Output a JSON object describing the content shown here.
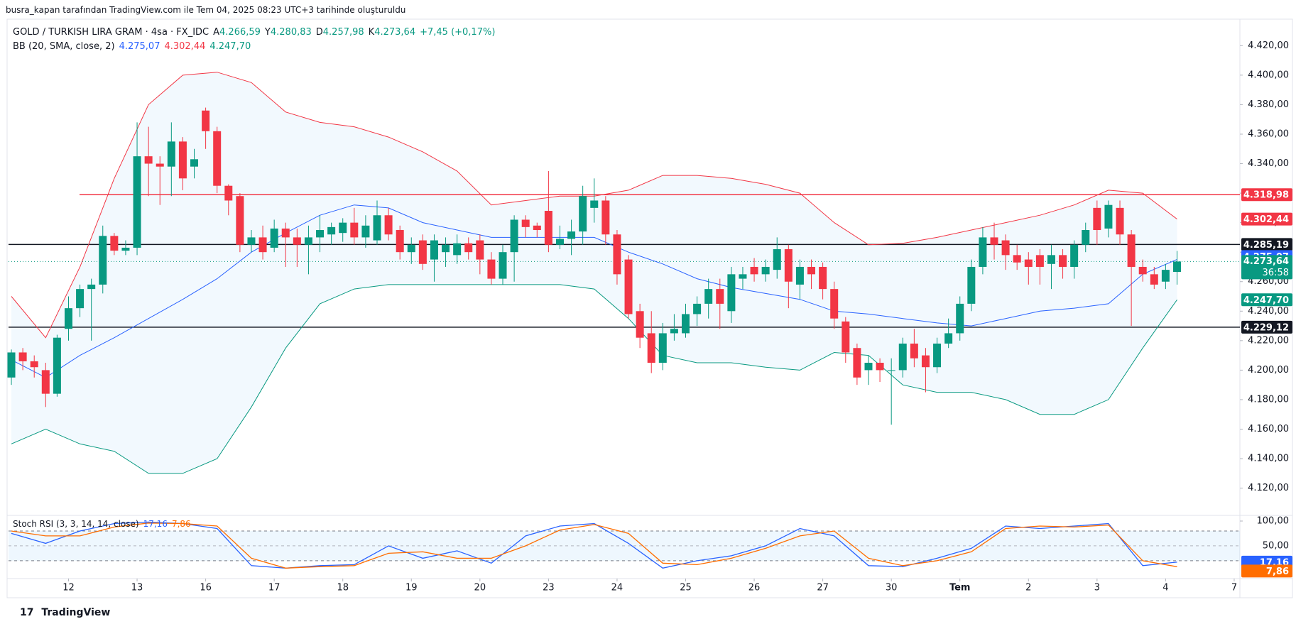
{
  "header": {
    "credit": "busra_kapan tarafından TradingView.com ile Tem 04, 2025 08:23 UTC+3 tarihinde oluşturuldu",
    "symbol": "GOLD / TURKISH LIRA GRAM · 4sa · FX_IDC",
    "ohlc": [
      {
        "key": "A",
        "value": "4.266,59"
      },
      {
        "key": "Y",
        "value": "4.280,83"
      },
      {
        "key": "D",
        "value": "4.257,98"
      },
      {
        "key": "K",
        "value": "4.273,64"
      }
    ],
    "change": "+7,45 (+0,17%)",
    "footer": "TradingView"
  },
  "chart_data": {
    "type": "candlestick",
    "up_color": "#089981",
    "down_color": "#f23645",
    "xlim": [
      -0.25,
      107.5
    ],
    "xticks": [
      {
        "value": 5,
        "label": "12"
      },
      {
        "value": 11,
        "label": "13"
      },
      {
        "value": 17,
        "label": "16"
      },
      {
        "value": 23,
        "label": "17"
      },
      {
        "value": 29,
        "label": "18"
      },
      {
        "value": 35,
        "label": "19"
      },
      {
        "value": 41,
        "label": "20"
      },
      {
        "value": 47,
        "label": "23"
      },
      {
        "value": 53,
        "label": "24"
      },
      {
        "value": 59,
        "label": "25"
      },
      {
        "value": 65,
        "label": "26"
      },
      {
        "value": 71,
        "label": "27"
      },
      {
        "value": 77,
        "label": "30"
      },
      {
        "value": 83,
        "label": "Tem"
      },
      {
        "value": 89,
        "label": "2"
      },
      {
        "value": 95,
        "label": "3"
      },
      {
        "value": 101,
        "label": "4"
      },
      {
        "value": 107,
        "label": "7"
      }
    ],
    "ylim": [
      4102,
      4437
    ],
    "yticks": [
      {
        "value": 4120,
        "label": "4.120,00"
      },
      {
        "value": 4140,
        "label": "4.140,00"
      },
      {
        "value": 4160,
        "label": "4.160,00"
      },
      {
        "value": 4180,
        "label": "4.180,00"
      },
      {
        "value": 4200,
        "label": "4.200,00"
      },
      {
        "value": 4220,
        "label": "4.220,00"
      },
      {
        "value": 4240,
        "label": "4.240,00"
      },
      {
        "value": 4260,
        "label": "4.260,00"
      },
      {
        "value": 4280,
        "label": "4.280,00"
      },
      {
        "value": 4300,
        "label": "4.300,00"
      },
      {
        "value": 4320,
        "label": "4.320,00"
      },
      {
        "value": 4340,
        "label": "4.340,00"
      },
      {
        "value": 4360,
        "label": "4.360,00"
      },
      {
        "value": 4380,
        "label": "4.380,00"
      },
      {
        "value": 4400,
        "label": "4.400,00"
      },
      {
        "value": 4420,
        "label": "4.420,00"
      }
    ],
    "open": [
      4195,
      4212,
      4206,
      4200,
      4184,
      4228,
      4242,
      4255,
      4258,
      4291,
      4281,
      4283,
      4345,
      4340,
      4338,
      4355,
      4338,
      4376,
      4362,
      4325,
      4318,
      4285,
      4290,
      4283,
      4296,
      4290,
      4285,
      4290,
      4292,
      4293,
      4300,
      4290,
      4288,
      4305,
      4295,
      4280,
      4288,
      4275,
      4280,
      4278,
      4286,
      4288,
      4275,
      4262,
      4280,
      4302,
      4298,
      4308,
      4285,
      4289,
      4294,
      4310,
      4315,
      4292,
      4275,
      4240,
      4225,
      4205,
      4225,
      4225,
      4238,
      4245,
      4255,
      4240,
      4262,
      4270,
      4265,
      4268,
      4282,
      4258,
      4270,
      4270,
      4255,
      4233,
      4215,
      4200,
      4205,
      4200,
      4200,
      4218,
      4210,
      4202,
      4218,
      4225,
      4245,
      4270,
      4290,
      4288,
      4278,
      4275,
      4278,
      4272,
      4278,
      4270,
      4285,
      4310,
      4296,
      4310,
      4292,
      4270,
      4265,
      4260,
      4266.59
    ],
    "high": [
      4214,
      4215,
      4210,
      4205,
      4224,
      4250,
      4258,
      4262,
      4298,
      4293,
      4288,
      4368,
      4365,
      4345,
      4368,
      4358,
      4350,
      4378,
      4365,
      4326,
      4320,
      4295,
      4298,
      4302,
      4300,
      4296,
      4298,
      4305,
      4300,
      4303,
      4310,
      4305,
      4315,
      4310,
      4298,
      4290,
      4292,
      4292,
      4290,
      4292,
      4290,
      4292,
      4280,
      4285,
      4305,
      4305,
      4300,
      4335,
      4298,
      4302,
      4325,
      4330,
      4318,
      4295,
      4278,
      4245,
      4240,
      4232,
      4238,
      4245,
      4250,
      4262,
      4262,
      4270,
      4270,
      4276,
      4275,
      4290,
      4285,
      4275,
      4275,
      4273,
      4260,
      4236,
      4218,
      4210,
      4208,
      4208,
      4222,
      4228,
      4215,
      4222,
      4235,
      4250,
      4275,
      4297,
      4300,
      4292,
      4285,
      4280,
      4282,
      4285,
      4282,
      4288,
      4300,
      4315,
      4315,
      4315,
      4295,
      4275,
      4270,
      4272,
      4280.83
    ],
    "low": [
      4190,
      4200,
      4195,
      4175,
      4182,
      4220,
      4236,
      4220,
      4252,
      4278,
      4278,
      4278,
      4318,
      4312,
      4318,
      4322,
      4330,
      4350,
      4320,
      4305,
      4280,
      4280,
      4275,
      4280,
      4270,
      4270,
      4265,
      4280,
      4285,
      4287,
      4285,
      4283,
      4285,
      4288,
      4275,
      4272,
      4268,
      4260,
      4270,
      4272,
      4275,
      4265,
      4258,
      4258,
      4260,
      4290,
      4290,
      4280,
      4282,
      4278,
      4285,
      4300,
      4285,
      4258,
      4235,
      4215,
      4198,
      4200,
      4220,
      4222,
      4230,
      4235,
      4228,
      4232,
      4255,
      4260,
      4260,
      4262,
      4242,
      4248,
      4255,
      4248,
      4228,
      4205,
      4190,
      4190,
      4192,
      4163,
      4195,
      4202,
      4185,
      4198,
      4215,
      4220,
      4240,
      4265,
      4275,
      4268,
      4268,
      4258,
      4258,
      4255,
      4262,
      4262,
      4280,
      4285,
      4290,
      4285,
      4230,
      4260,
      4255,
      4255,
      4257.98
    ],
    "close": [
      4212,
      4206,
      4202,
      4184,
      4222,
      4242,
      4255,
      4258,
      4291,
      4281,
      4283,
      4345,
      4340,
      4338,
      4355,
      4330,
      4343,
      4362,
      4325,
      4315,
      4285,
      4290,
      4280,
      4296,
      4290,
      4285,
      4290,
      4295,
      4297,
      4300,
      4290,
      4298,
      4305,
      4292,
      4280,
      4285,
      4272,
      4288,
      4285,
      4286,
      4280,
      4275,
      4262,
      4280,
      4302,
      4297,
      4295,
      4285,
      4289,
      4294,
      4318,
      4315,
      4292,
      4265,
      4238,
      4222,
      4205,
      4225,
      4228,
      4238,
      4245,
      4255,
      4245,
      4265,
      4265,
      4265,
      4270,
      4282,
      4260,
      4270,
      4265,
      4255,
      4235,
      4212,
      4195,
      4205,
      4200,
      4200,
      4218,
      4208,
      4202,
      4218,
      4225,
      4245,
      4270,
      4290,
      4285,
      4278,
      4273,
      4270,
      4270,
      4278,
      4270,
      4285,
      4295,
      4295,
      4312,
      4292,
      4270,
      4265,
      4258,
      4268,
      4273.64
    ],
    "hlines": [
      {
        "value": 4318.98,
        "label": "4.318,98",
        "color": "#f23645"
      },
      {
        "value": 4285.19,
        "label": "4.285,19",
        "color": "#131722"
      },
      {
        "value": 4229.12,
        "label": "4.229,12",
        "color": "#131722"
      }
    ],
    "last": {
      "value": 4273.64,
      "label": "4.273,64",
      "countdown": "36:58",
      "color": "#089981"
    },
    "bb": {
      "label": "BB (20, SMA, close, 2)",
      "x": [
        0,
        3,
        6,
        9,
        12,
        15,
        18,
        21,
        24,
        27,
        30,
        33,
        36,
        39,
        42,
        45,
        48,
        51,
        54,
        57,
        60,
        63,
        66,
        69,
        72,
        75,
        78,
        81,
        84,
        87,
        90,
        93,
        96,
        99,
        102
      ],
      "series": [
        {
          "color": "#2962ff",
          "value_label": "4.275,07",
          "values": [
            4207,
            4195,
            4210,
            4222,
            4235,
            4248,
            4262,
            4280,
            4293,
            4305,
            4312,
            4310,
            4300,
            4295,
            4290,
            4290,
            4290,
            4290,
            4280,
            4272,
            4262,
            4256,
            4252,
            4248,
            4240,
            4238,
            4235,
            4232,
            4230,
            4235,
            4240,
            4242,
            4245,
            4265,
            4275.07
          ]
        },
        {
          "color": "#f23645",
          "value_label": "4.302,44",
          "values": [
            4250,
            4222,
            4270,
            4330,
            4380,
            4400,
            4402,
            4395,
            4375,
            4368,
            4365,
            4358,
            4348,
            4335,
            4312,
            4315,
            4318,
            4318,
            4322,
            4332,
            4332,
            4330,
            4326,
            4320,
            4300,
            4285,
            4286,
            4290,
            4295,
            4300,
            4305,
            4312,
            4322,
            4320,
            4302.44
          ]
        },
        {
          "color": "#089981",
          "value_label": "4.247,70",
          "values": [
            4150,
            4160,
            4150,
            4145,
            4130,
            4130,
            4140,
            4175,
            4215,
            4245,
            4255,
            4258,
            4258,
            4258,
            4258,
            4258,
            4258,
            4255,
            4235,
            4210,
            4205,
            4205,
            4202,
            4200,
            4212,
            4210,
            4190,
            4185,
            4185,
            4180,
            4170,
            4170,
            4180,
            4215,
            4247.7
          ]
        }
      ]
    },
    "stoch": {
      "label": "Stoch RSI (3, 3, 14, 14, close)",
      "ylim": [
        -16,
        110
      ],
      "yticks": [
        {
          "value": 100,
          "label": "100,00"
        },
        {
          "value": 50,
          "label": "50,00"
        }
      ],
      "levels": [
        80,
        20
      ],
      "x": [
        0,
        3,
        6,
        9,
        12,
        15,
        18,
        21,
        24,
        27,
        30,
        33,
        36,
        39,
        42,
        45,
        48,
        51,
        54,
        57,
        60,
        63,
        66,
        69,
        72,
        75,
        78,
        81,
        84,
        87,
        90,
        93,
        96,
        99,
        102
      ],
      "series": [
        {
          "color": "#2962ff",
          "value_label": "17,16",
          "values": [
            75,
            55,
            80,
            95,
            98,
            95,
            85,
            10,
            5,
            10,
            12,
            50,
            25,
            40,
            15,
            70,
            90,
            95,
            55,
            5,
            20,
            30,
            50,
            85,
            70,
            10,
            8,
            25,
            45,
            90,
            85,
            90,
            95,
            10,
            17.16
          ]
        },
        {
          "color": "#ff6d00",
          "value_label": "7,86",
          "values": [
            80,
            70,
            70,
            88,
            96,
            95,
            90,
            25,
            5,
            8,
            10,
            35,
            38,
            25,
            25,
            50,
            82,
            93,
            75,
            15,
            12,
            25,
            45,
            70,
            80,
            25,
            10,
            20,
            38,
            85,
            90,
            88,
            92,
            20,
            7.86
          ]
        }
      ]
    }
  }
}
